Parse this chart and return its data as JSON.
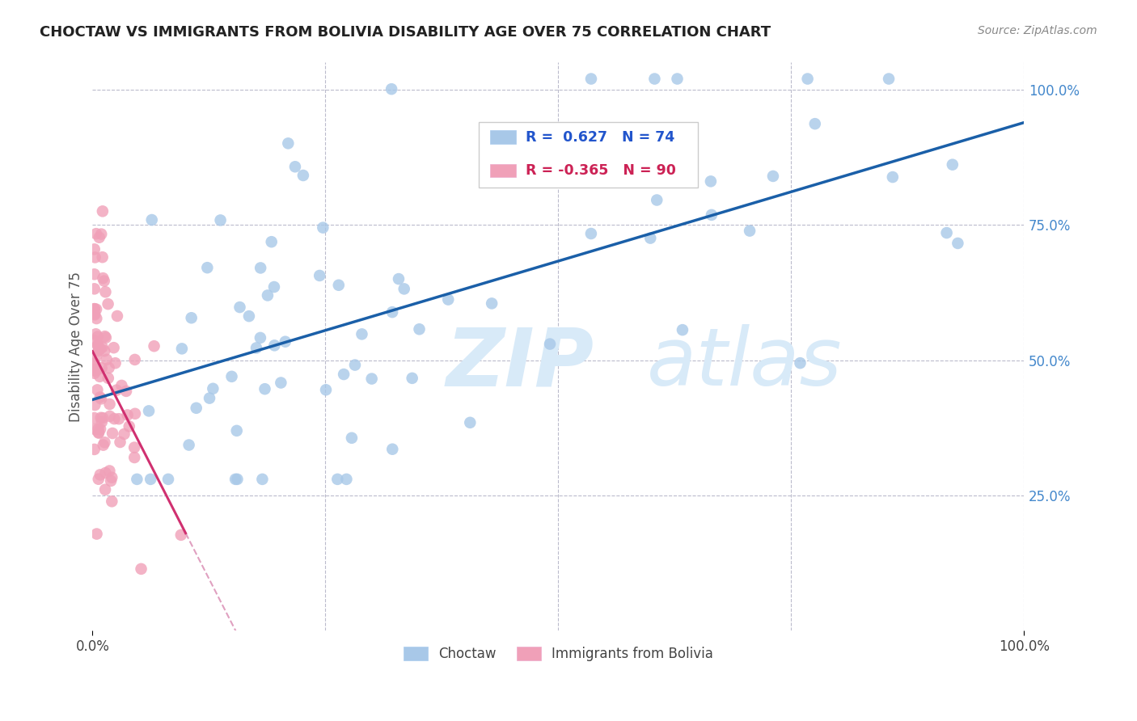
{
  "title": "CHOCTAW VS IMMIGRANTS FROM BOLIVIA DISABILITY AGE OVER 75 CORRELATION CHART",
  "source": "Source: ZipAtlas.com",
  "ylabel": "Disability Age Over 75",
  "legend_label1": "Choctaw",
  "legend_label2": "Immigrants from Bolivia",
  "R1": 0.627,
  "N1": 74,
  "R2": -0.365,
  "N2": 90,
  "blue_color": "#a8c8e8",
  "blue_line_color": "#1a5fa8",
  "pink_color": "#f0a0b8",
  "pink_line_color": "#d03070",
  "pink_line_dashed_color": "#e0a0c0",
  "background_color": "#ffffff",
  "grid_color": "#bbbbcc",
  "watermark_color": "#d8eaf8",
  "xlim": [
    0.0,
    1.0
  ],
  "ylim": [
    0.0,
    1.05
  ],
  "right_tick_color": "#4488cc",
  "title_color": "#222222",
  "source_color": "#888888",
  "ylabel_color": "#555555",
  "xlabel_color": "#444444",
  "legend_R1_color": "#2255cc",
  "legend_R2_color": "#cc2255"
}
